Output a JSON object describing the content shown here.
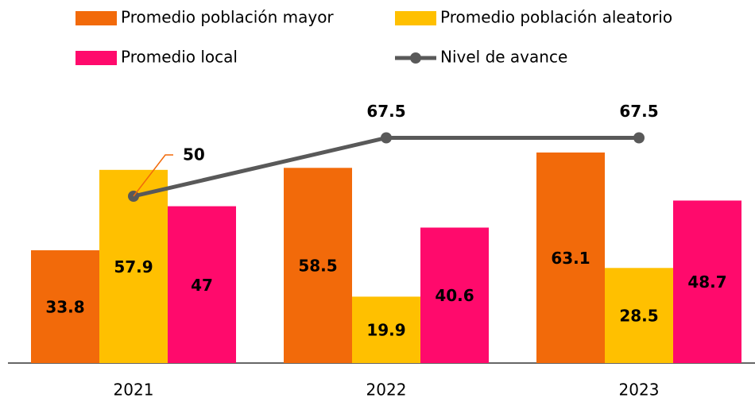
{
  "chart_data": {
    "type": "bar",
    "categories": [
      "2021",
      "2022",
      "2023"
    ],
    "series": [
      {
        "name": "Promedio población mayor",
        "color": "#f26a0a",
        "values": [
          33.8,
          58.5,
          63.1
        ]
      },
      {
        "name": "Promedio población aleatorio",
        "color": "#ffc000",
        "values": [
          57.9,
          19.9,
          28.5
        ]
      },
      {
        "name": "Promedio local",
        "color": "#ff0a6c",
        "values": [
          47,
          40.6,
          48.7
        ]
      },
      {
        "name": "Nivel de avance",
        "type": "line",
        "color": "#595959",
        "values": [
          50,
          67.5,
          67.5
        ]
      }
    ],
    "ylim": [
      0,
      80
    ]
  }
}
